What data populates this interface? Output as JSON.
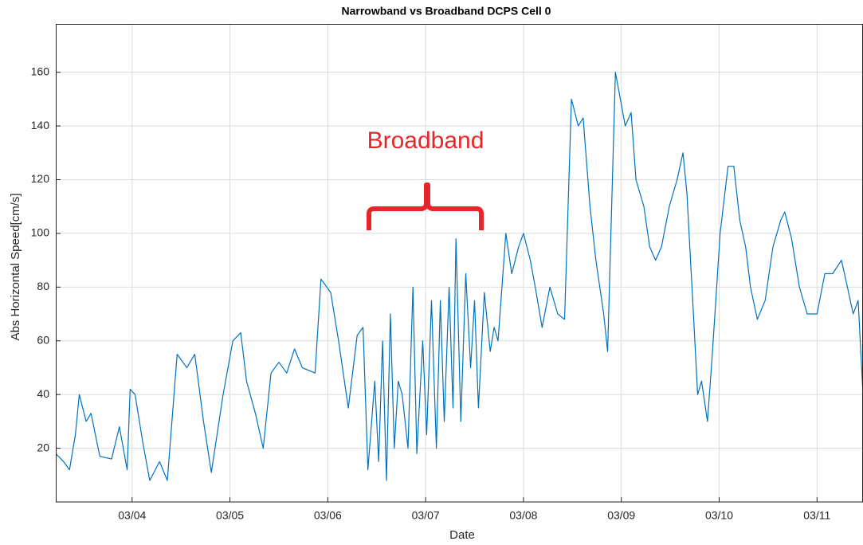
{
  "chart_data": {
    "type": "line",
    "title": "Narrowband vs Broadband DCPS Cell 0",
    "x_label": "Date",
    "y_label": "Abs Horizontal Speed[cm/s]",
    "annotation": "Broadband",
    "color": "#0072bd",
    "annotation_color": "#e8262a",
    "grid": true,
    "xlim": [
      3.22,
      11.47
    ],
    "ylim": [
      0,
      178
    ],
    "xticks": [
      {
        "value": 4,
        "label": "03/04"
      },
      {
        "value": 5,
        "label": "03/05"
      },
      {
        "value": 6,
        "label": "03/06"
      },
      {
        "value": 7,
        "label": "03/07"
      },
      {
        "value": 8,
        "label": "03/08"
      },
      {
        "value": 9,
        "label": "03/09"
      },
      {
        "value": 10,
        "label": "03/10"
      },
      {
        "value": 11,
        "label": "03/11"
      }
    ],
    "yticks": [
      20,
      40,
      60,
      80,
      100,
      120,
      140,
      160
    ],
    "x": [
      3.22,
      3.3,
      3.36,
      3.42,
      3.46,
      3.53,
      3.58,
      3.67,
      3.79,
      3.87,
      3.95,
      3.98,
      4.03,
      4.11,
      4.18,
      4.28,
      4.36,
      4.46,
      4.56,
      4.64,
      4.73,
      4.81,
      4.93,
      5.03,
      5.11,
      5.17,
      5.26,
      5.34,
      5.42,
      5.5,
      5.58,
      5.66,
      5.74,
      5.87,
      5.93,
      6.03,
      6.11,
      6.21,
      6.3,
      6.36,
      6.41,
      6.48,
      6.52,
      6.56,
      6.6,
      6.64,
      6.68,
      6.72,
      6.76,
      6.82,
      6.87,
      6.91,
      6.97,
      7.01,
      7.06,
      7.11,
      7.15,
      7.19,
      7.24,
      7.28,
      7.31,
      7.36,
      7.41,
      7.46,
      7.5,
      7.54,
      7.6,
      7.66,
      7.7,
      7.74,
      7.82,
      7.88,
      7.95,
      8.0,
      8.07,
      8.12,
      8.19,
      8.27,
      8.35,
      8.42,
      8.49,
      8.56,
      8.61,
      8.68,
      8.74,
      8.82,
      8.86,
      8.94,
      8.99,
      9.04,
      9.1,
      9.15,
      9.23,
      9.29,
      9.35,
      9.41,
      9.49,
      9.57,
      9.63,
      9.67,
      9.73,
      9.78,
      9.82,
      9.88,
      9.93,
      10.01,
      10.09,
      10.15,
      10.21,
      10.27,
      10.32,
      10.39,
      10.47,
      10.55,
      10.63,
      10.67,
      10.74,
      10.82,
      10.9,
      11.0,
      11.08,
      11.16,
      11.25,
      11.31,
      11.37,
      11.42,
      11.47
    ],
    "values": [
      18,
      15,
      12,
      25,
      40,
      30,
      33,
      17,
      16,
      28,
      12,
      42,
      40,
      22,
      8,
      15,
      8,
      55,
      50,
      55,
      30,
      11,
      40,
      60,
      63,
      45,
      33,
      20,
      48,
      52,
      48,
      57,
      50,
      48,
      83,
      78,
      60,
      35,
      62,
      65,
      12,
      45,
      15,
      60,
      8,
      70,
      20,
      45,
      40,
      20,
      80,
      18,
      60,
      25,
      75,
      20,
      75,
      30,
      80,
      35,
      98,
      30,
      85,
      50,
      75,
      35,
      78,
      56,
      65,
      60,
      100,
      85,
      95,
      100,
      90,
      80,
      65,
      80,
      70,
      68,
      150,
      140,
      143,
      110,
      90,
      70,
      56,
      160,
      150,
      140,
      145,
      120,
      110,
      95,
      90,
      95,
      110,
      120,
      130,
      115,
      75,
      40,
      45,
      30,
      55,
      100,
      125,
      125,
      105,
      95,
      80,
      68,
      75,
      95,
      105,
      108,
      98,
      80,
      70,
      70,
      85,
      85,
      90,
      80,
      70,
      75,
      40
    ]
  }
}
